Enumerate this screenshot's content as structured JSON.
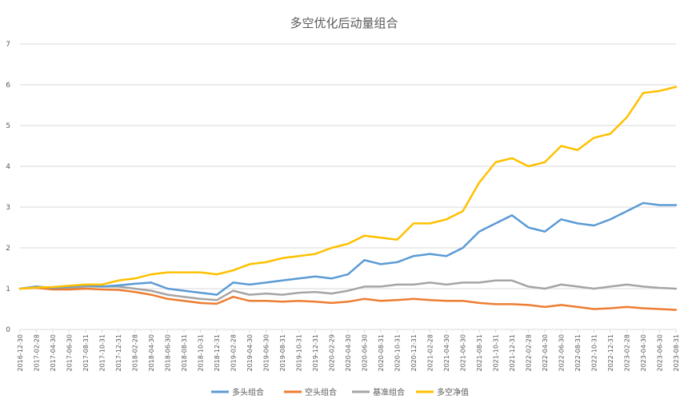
{
  "chart_data": {
    "type": "line",
    "title": "多空优化后动量组合",
    "xlabel": "",
    "ylabel": "",
    "ylim": [
      0,
      7
    ],
    "yticks": [
      "0",
      "1",
      "2",
      "3",
      "4",
      "5",
      "6",
      "7"
    ],
    "grid": "horizontal",
    "legend_position": "bottom",
    "x": [
      "2016-12-30",
      "2017-02-28",
      "2017-04-30",
      "2017-06-30",
      "2017-08-31",
      "2017-10-31",
      "2017-12-31",
      "2018-02-28",
      "2018-04-30",
      "2018-06-30",
      "2018-08-31",
      "2018-10-31",
      "2018-12-31",
      "2019-02-28",
      "2019-04-30",
      "2019-06-30",
      "2019-08-31",
      "2019-10-31",
      "2019-12-31",
      "2020-02-29",
      "2020-04-30",
      "2020-06-30",
      "2020-08-31",
      "2020-10-31",
      "2020-12-31",
      "2021-02-28",
      "2021-04-30",
      "2021-06-30",
      "2021-08-31",
      "2021-10-31",
      "2021-12-31",
      "2022-02-28",
      "2022-04-30",
      "2022-06-30",
      "2022-08-31",
      "2022-10-31",
      "2022-12-31",
      "2023-02-28",
      "2023-04-30",
      "2023-06-30",
      "2023-08-31"
    ],
    "series": [
      {
        "name": "多头组合",
        "color": "#5b9bd5",
        "values": [
          1.0,
          1.05,
          1.02,
          1.05,
          1.08,
          1.05,
          1.08,
          1.12,
          1.15,
          1.0,
          0.95,
          0.9,
          0.85,
          1.15,
          1.1,
          1.15,
          1.2,
          1.25,
          1.3,
          1.25,
          1.35,
          1.7,
          1.6,
          1.65,
          1.8,
          1.85,
          1.8,
          2.0,
          2.4,
          2.6,
          2.8,
          2.5,
          2.4,
          2.7,
          2.6,
          2.55,
          2.7,
          2.9,
          3.1,
          3.05,
          3.05
        ]
      },
      {
        "name": "空头组合",
        "color": "#ed7d31",
        "values": [
          1.0,
          1.02,
          0.98,
          0.98,
          1.0,
          0.98,
          0.97,
          0.92,
          0.85,
          0.75,
          0.7,
          0.65,
          0.63,
          0.8,
          0.7,
          0.7,
          0.68,
          0.7,
          0.68,
          0.65,
          0.68,
          0.75,
          0.7,
          0.72,
          0.75,
          0.72,
          0.7,
          0.7,
          0.65,
          0.62,
          0.62,
          0.6,
          0.55,
          0.6,
          0.55,
          0.5,
          0.52,
          0.55,
          0.52,
          0.5,
          0.48
        ]
      },
      {
        "name": "基准组合",
        "color": "#a5a5a5",
        "values": [
          1.0,
          1.05,
          1.0,
          1.02,
          1.05,
          1.05,
          1.05,
          1.0,
          0.95,
          0.85,
          0.8,
          0.75,
          0.72,
          0.95,
          0.85,
          0.88,
          0.85,
          0.9,
          0.92,
          0.88,
          0.95,
          1.05,
          1.05,
          1.1,
          1.1,
          1.15,
          1.1,
          1.15,
          1.15,
          1.2,
          1.2,
          1.05,
          1.0,
          1.1,
          1.05,
          1.0,
          1.05,
          1.1,
          1.05,
          1.02,
          1.0
        ]
      },
      {
        "name": "多空净值",
        "color": "#ffc000",
        "values": [
          1.0,
          1.03,
          1.04,
          1.07,
          1.1,
          1.1,
          1.2,
          1.25,
          1.35,
          1.4,
          1.4,
          1.4,
          1.35,
          1.45,
          1.6,
          1.65,
          1.75,
          1.8,
          1.85,
          2.0,
          2.1,
          2.3,
          2.25,
          2.2,
          2.6,
          2.6,
          2.7,
          2.9,
          3.6,
          4.1,
          4.2,
          4.0,
          4.1,
          4.5,
          4.4,
          4.7,
          4.8,
          5.2,
          5.8,
          5.85,
          5.95
        ]
      }
    ]
  }
}
